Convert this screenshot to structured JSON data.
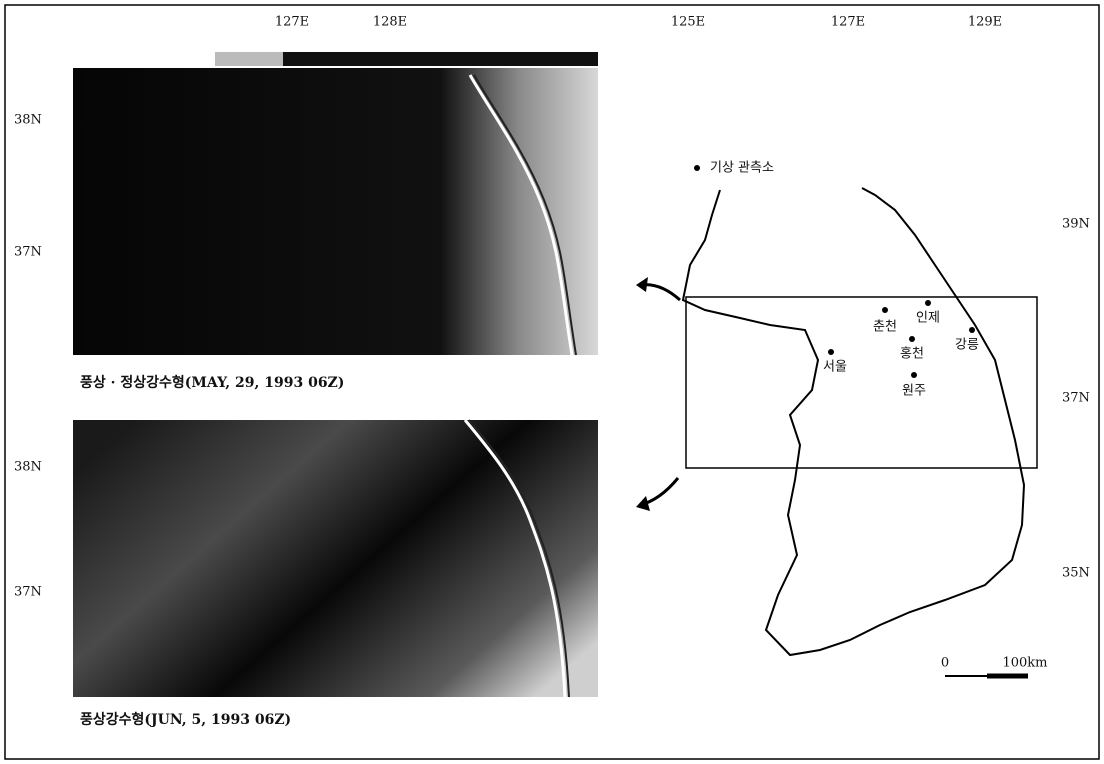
{
  "panels": [
    {
      "caption": "풍상 · 정상강수형(MAY, 29, 1993 06Z)",
      "lon_labels": [
        "127E",
        "128E"
      ],
      "lat_labels": [
        "38N",
        "37N"
      ]
    },
    {
      "caption": "풍상강수형(JUN, 5, 1993 06Z)",
      "lat_labels": [
        "38N",
        "37N"
      ]
    }
  ],
  "map": {
    "legend": "기상 관측소",
    "lon_labels": [
      "125E",
      "127E",
      "129E"
    ],
    "lat_labels": [
      "39N",
      "37N",
      "35N"
    ],
    "stations": [
      "춘천",
      "인제",
      "홍천",
      "원주",
      "서울",
      "강릉"
    ],
    "scale": {
      "start": "0",
      "end": "100km"
    }
  }
}
